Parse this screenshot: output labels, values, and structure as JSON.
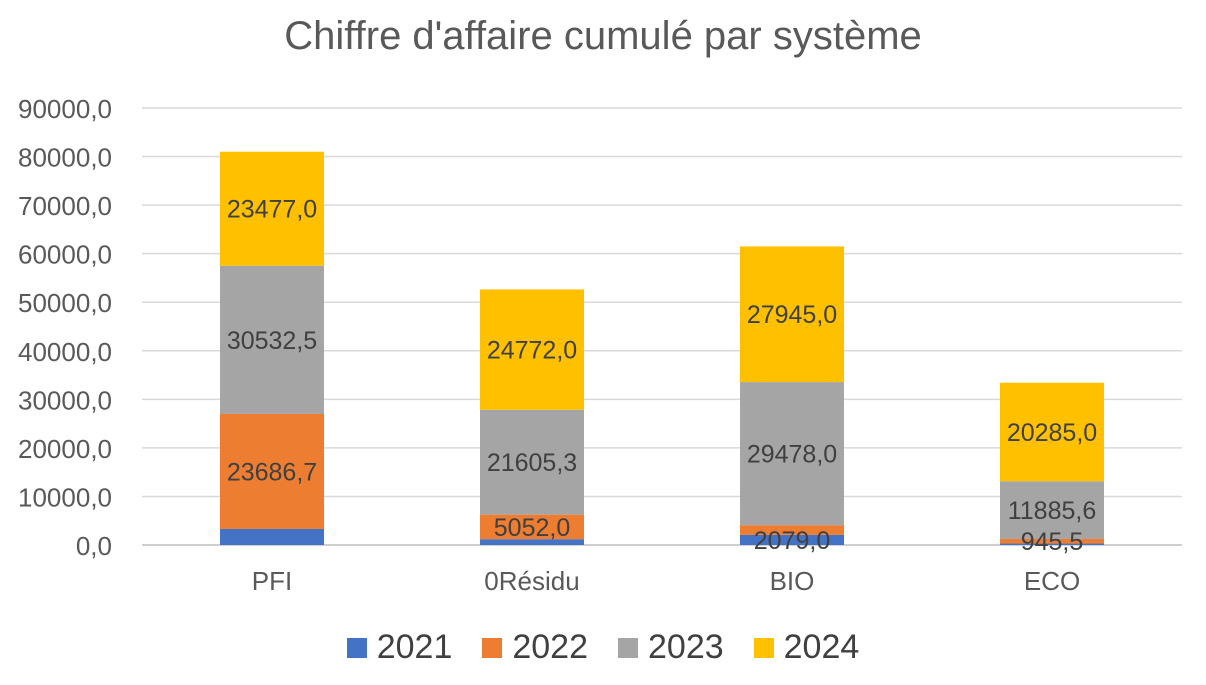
{
  "chart_data": {
    "type": "bar",
    "stacked": true,
    "title": "Chiffre d'affaire cumulé par système",
    "xlabel": "",
    "ylabel": "",
    "categories": [
      "PFI",
      "0Résidu",
      "BIO",
      "ECO"
    ],
    "ylim": [
      0,
      90000
    ],
    "yticks": [
      0,
      10000,
      20000,
      30000,
      40000,
      50000,
      60000,
      70000,
      80000,
      90000
    ],
    "ytick_labels": [
      "0,0",
      "10000,0",
      "20000,0",
      "30000,0",
      "40000,0",
      "50000,0",
      "60000,0",
      "70000,0",
      "80000,0",
      "90000,0"
    ],
    "grid": true,
    "legend_position": "bottom",
    "series": [
      {
        "name": "2021",
        "color": "#4472C4",
        "values": [
          3300,
          1200,
          2079.0,
          300
        ],
        "labels": [
          "",
          "",
          "2079,0",
          ""
        ]
      },
      {
        "name": "2022",
        "color": "#ED7D31",
        "values": [
          23686.7,
          5052.0,
          2000,
          945.5
        ],
        "labels": [
          "23686,7",
          "5052,0",
          "",
          "945,5"
        ]
      },
      {
        "name": "2023",
        "color": "#A5A5A5",
        "values": [
          30532.5,
          21605.3,
          29478.0,
          11885.6
        ],
        "labels": [
          "30532,5",
          "21605,3",
          "29478,0",
          "11885,6"
        ]
      },
      {
        "name": "2024",
        "color": "#FFC000",
        "values": [
          23477.0,
          24772.0,
          27945.0,
          20285.0
        ],
        "labels": [
          "23477,0",
          "24772,0",
          "27945,0",
          "20285,0"
        ]
      }
    ]
  }
}
